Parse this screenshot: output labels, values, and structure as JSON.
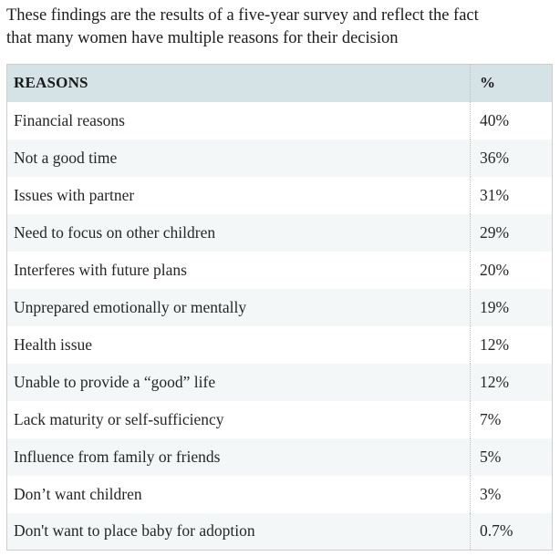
{
  "caption": {
    "lines": [
      "These findings are the results of a five-year survey and reflect the fact",
      "that many women have multiple reasons for their decision"
    ]
  },
  "table": {
    "headers": {
      "reason": "REASONS",
      "percent": "%"
    },
    "rows": [
      {
        "reason": "Financial reasons",
        "percent": "40%"
      },
      {
        "reason": "Not a good time",
        "percent": "36%"
      },
      {
        "reason": "Issues with partner",
        "percent": "31%"
      },
      {
        "reason": "Need to focus on other children",
        "percent": "29%"
      },
      {
        "reason": "Interferes with future plans",
        "percent": "20%"
      },
      {
        "reason": "Unprepared emotionally or mentally",
        "percent": "19%"
      },
      {
        "reason": "Health issue",
        "percent": "12%"
      },
      {
        "reason": "Unable to provide a “good” life",
        "percent": "12%"
      },
      {
        "reason": "Lack maturity or self-sufficiency",
        "percent": "7%"
      },
      {
        "reason": "Influence from family or friends",
        "percent": "5%"
      },
      {
        "reason": "Don’t want children",
        "percent": "3%"
      },
      {
        "reason": "Don't want to place baby for adoption",
        "percent": "0.7%"
      }
    ]
  },
  "chart_data": {
    "type": "table",
    "title": "These findings are the results of a five-year survey and reflect the fact that many women have multiple reasons for their decision",
    "columns": [
      "REASONS",
      "%"
    ],
    "categories": [
      "Financial reasons",
      "Not a good time",
      "Issues with partner",
      "Need to focus on other children",
      "Interferes with future plans",
      "Unprepared emotionally or mentally",
      "Health issue",
      "Unable to provide a “good” life",
      "Lack maturity or self-sufficiency",
      "Influence from family or friends",
      "Don’t want children",
      "Don't want to place baby for adoption"
    ],
    "values": [
      40,
      36,
      31,
      29,
      20,
      19,
      12,
      12,
      7,
      5,
      3,
      0.7
    ],
    "value_unit": "%"
  },
  "colors": {
    "header_bg": "#d5e2e6",
    "row_alt_bg": "#f4f7f7",
    "table_border": "#cdcdcd",
    "column_divider": "#bfbfbf",
    "text": "#262626"
  }
}
